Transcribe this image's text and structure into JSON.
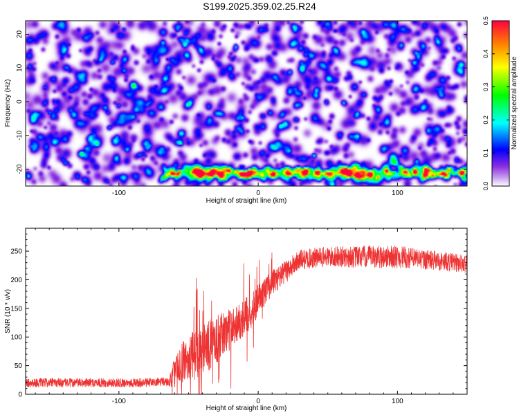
{
  "title": "S199.2025.359.02.25.R24",
  "chart_data": [
    {
      "type": "heatmap",
      "xlabel": "Height of straight line (km)",
      "ylabel": "Frequency (Hz)",
      "xlim": [
        -167,
        150
      ],
      "ylim": [
        -25,
        24
      ],
      "xticks": [
        -100,
        0,
        100
      ],
      "yticks": [
        -20,
        -10,
        0,
        10,
        20
      ],
      "colorbar": {
        "label": "Normalized spectral amplitude",
        "range": [
          0,
          0.5
        ],
        "ticks": [
          "0.0",
          "0.1",
          "0.2",
          "0.3",
          "0.4",
          "0.5"
        ],
        "colors": [
          "#ffffff",
          "#8a2be2",
          "#0000ff",
          "#00ffff",
          "#00ff00",
          "#ffff00",
          "#ff8000",
          "#ff0040"
        ]
      },
      "description_of_field": {
        "background_level": 0.02,
        "band_frequency_hz": -21,
        "band_x_start_km": -70,
        "bright_spots": [
          {
            "x": -43,
            "y": -20,
            "amp": 0.35
          },
          {
            "x": -70,
            "y": -23,
            "amp": 0.18
          },
          {
            "x": 18,
            "y": -20.5,
            "amp": 0.3
          },
          {
            "x": 55,
            "y": -21,
            "amp": 0.2
          },
          {
            "x": 80,
            "y": -21,
            "amp": 0.45
          },
          {
            "x": 140,
            "y": -21,
            "amp": 0.3
          },
          {
            "x": -150,
            "y": -3,
            "amp": 0.15
          },
          {
            "x": -105,
            "y": 12,
            "amp": 0.15
          },
          {
            "x": 128,
            "y": 4,
            "amp": 0.14
          },
          {
            "x": -78,
            "y": 15,
            "amp": 0.12
          }
        ]
      }
    },
    {
      "type": "line",
      "xlabel": "Height of straight line (km)",
      "ylabel": "SNR (10 * v/v)",
      "xlim": [
        -167,
        150
      ],
      "ylim": [
        0,
        290
      ],
      "xticks": [
        -100,
        0,
        100
      ],
      "yticks": [
        0,
        50,
        100,
        150,
        200,
        250
      ],
      "series": [
        {
          "name": "SNR",
          "color": "#ee3333",
          "x": [
            -167,
            -140,
            -110,
            -80,
            -64,
            -61,
            -55,
            -45,
            -35,
            -25,
            -15,
            -5,
            0,
            10,
            20,
            30,
            50,
            80,
            100,
            120,
            150
          ],
          "mean": [
            20,
            20,
            20,
            20,
            22,
            35,
            55,
            70,
            85,
            105,
            125,
            145,
            165,
            195,
            215,
            235,
            240,
            240,
            240,
            235,
            228
          ],
          "spread": [
            8,
            8,
            8,
            8,
            8,
            25,
            35,
            45,
            45,
            40,
            35,
            30,
            28,
            22,
            20,
            18,
            18,
            20,
            20,
            18,
            16
          ]
        }
      ]
    }
  ]
}
